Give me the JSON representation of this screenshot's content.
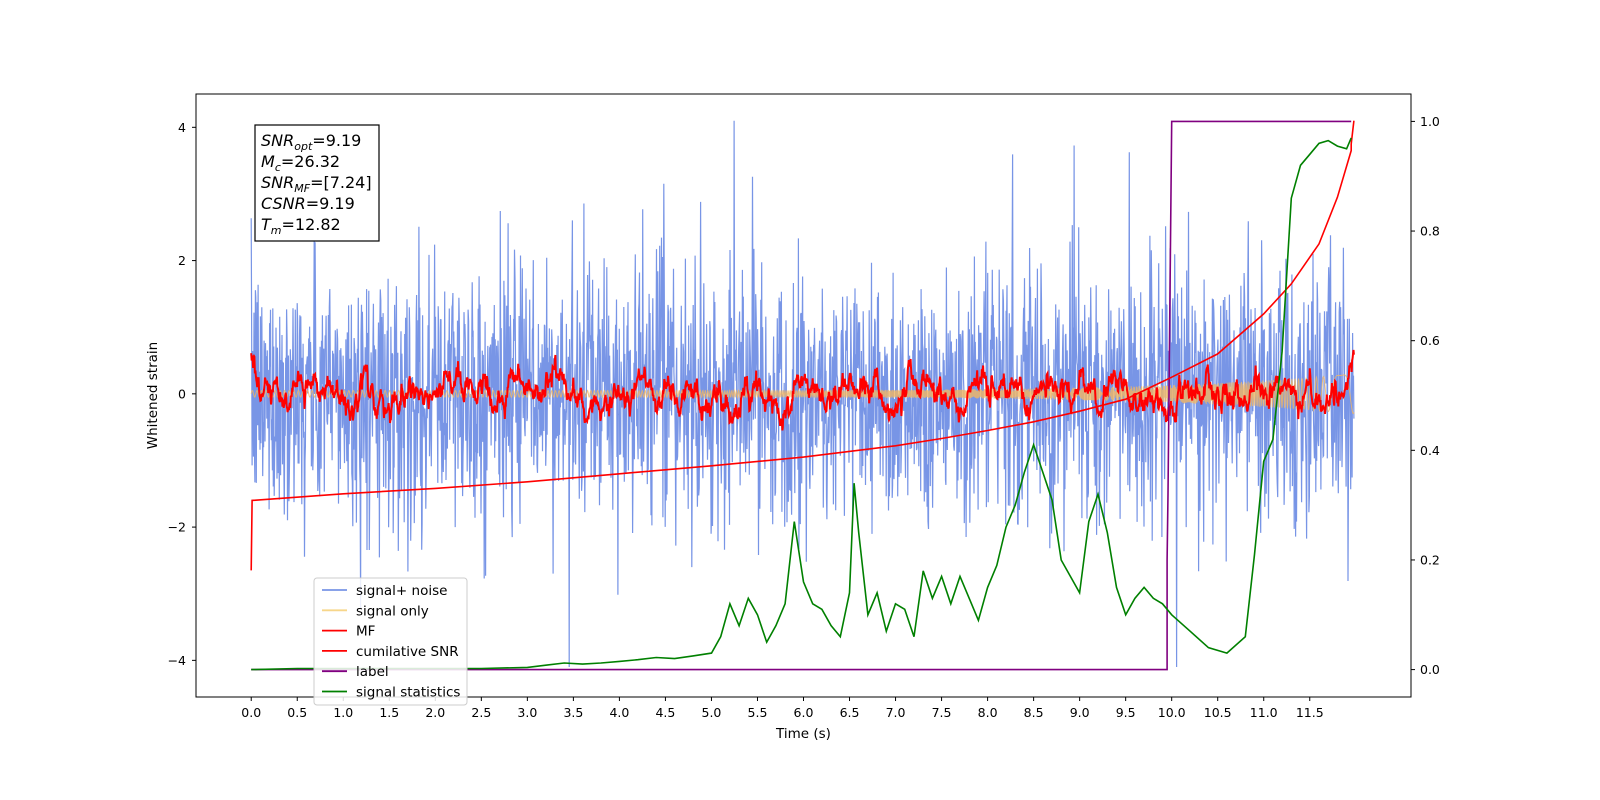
{
  "chart_data": {
    "type": "line",
    "xlabel": "Time (s)",
    "ylabel": "Whitened strain",
    "xlim": [
      -0.6,
      12.6
    ],
    "ylim": [
      -4.55,
      4.5
    ],
    "y2lim": [
      -0.05,
      1.05
    ],
    "x_ticks": [
      "0.0",
      "0.5",
      "1.0",
      "1.5",
      "2.0",
      "2.5",
      "3.0",
      "3.5",
      "4.0",
      "4.5",
      "5.0",
      "5.5",
      "6.0",
      "6.5",
      "7.0",
      "7.5",
      "8.0",
      "8.5",
      "9.0",
      "9.5",
      "10.0",
      "10.5",
      "11.0",
      "11.5"
    ],
    "y_ticks": [
      "−4",
      "−2",
      "0",
      "2",
      "4"
    ],
    "y2_ticks": [
      "0.0",
      "0.2",
      "0.4",
      "0.6",
      "0.8",
      "1.0"
    ],
    "info_box": [
      {
        "sym": "SNR",
        "sub": "opt",
        "val": "=9.19"
      },
      {
        "sym": "M",
        "sub": "c",
        "val": "=26.32"
      },
      {
        "sym": "SNR",
        "sub": "MF",
        "val": "=[7.24]"
      },
      {
        "sym": "CSNR",
        "sub": "",
        "val": "=9.19"
      },
      {
        "sym": "T",
        "sub": "m",
        "val": "=12.82"
      }
    ],
    "legend": [
      {
        "name": "signal+ noise",
        "color": "#7895e6"
      },
      {
        "name": "signal only",
        "color": "#f7d68a"
      },
      {
        "name": "MF",
        "color": "#ff0000"
      },
      {
        "name": "cumilative SNR",
        "color": "#ff0000"
      },
      {
        "name": "label",
        "color": "#800080"
      },
      {
        "name": "signal statistics",
        "color": "#008000"
      }
    ],
    "legend_position": "lower-left",
    "series": [
      {
        "name": "label",
        "axis": "right",
        "color": "#800080",
        "x": [
          0,
          9.95,
          9.95,
          9.96,
          10.0,
          11.95
        ],
        "y": [
          0,
          0,
          0.2,
          0.32,
          1.0,
          1.0
        ]
      },
      {
        "name": "cumilative SNR",
        "axis": "left",
        "color": "#ff0000",
        "x": [
          0,
          0.01,
          1,
          2,
          3,
          4,
          5,
          6,
          7,
          7.5,
          8,
          8.5,
          9,
          9.5,
          10,
          10.5,
          11,
          11.3,
          11.6,
          11.8,
          11.95,
          11.95,
          11.98
        ],
        "y": [
          -2.65,
          -1.6,
          -1.5,
          -1.42,
          -1.32,
          -1.2,
          -1.08,
          -0.95,
          -0.78,
          -0.67,
          -0.55,
          -0.42,
          -0.26,
          -0.08,
          0.25,
          0.6,
          1.2,
          1.65,
          2.25,
          2.95,
          3.65,
          3.75,
          4.1
        ]
      },
      {
        "name": "signal statistics",
        "axis": "right",
        "color": "#008000",
        "x": [
          0,
          0.5,
          1,
          1.5,
          2,
          2.5,
          3,
          3.2,
          3.4,
          3.6,
          3.8,
          4.0,
          4.2,
          4.4,
          4.6,
          4.8,
          5.0,
          5.1,
          5.2,
          5.3,
          5.4,
          5.5,
          5.6,
          5.7,
          5.8,
          5.9,
          6.0,
          6.1,
          6.2,
          6.3,
          6.4,
          6.5,
          6.55,
          6.6,
          6.7,
          6.8,
          6.9,
          7.0,
          7.1,
          7.2,
          7.3,
          7.4,
          7.5,
          7.6,
          7.7,
          7.8,
          7.9,
          8.0,
          8.1,
          8.2,
          8.3,
          8.4,
          8.5,
          8.6,
          8.7,
          8.8,
          8.9,
          9.0,
          9.1,
          9.2,
          9.3,
          9.4,
          9.5,
          9.6,
          9.7,
          9.8,
          9.9,
          10.0,
          10.2,
          10.4,
          10.6,
          10.8,
          10.9,
          11.0,
          11.1,
          11.2,
          11.3,
          11.4,
          11.5,
          11.6,
          11.7,
          11.8,
          11.9,
          11.95
        ],
        "y": [
          0,
          0.002,
          0.002,
          0.002,
          0.002,
          0.002,
          0.004,
          0.008,
          0.012,
          0.01,
          0.012,
          0.015,
          0.018,
          0.022,
          0.02,
          0.025,
          0.03,
          0.06,
          0.12,
          0.08,
          0.13,
          0.1,
          0.05,
          0.08,
          0.12,
          0.27,
          0.16,
          0.12,
          0.11,
          0.08,
          0.06,
          0.14,
          0.34,
          0.25,
          0.1,
          0.14,
          0.07,
          0.12,
          0.11,
          0.06,
          0.18,
          0.13,
          0.17,
          0.12,
          0.17,
          0.13,
          0.09,
          0.15,
          0.19,
          0.26,
          0.3,
          0.36,
          0.41,
          0.36,
          0.31,
          0.2,
          0.17,
          0.14,
          0.27,
          0.32,
          0.25,
          0.15,
          0.1,
          0.13,
          0.15,
          0.13,
          0.12,
          0.1,
          0.07,
          0.04,
          0.03,
          0.06,
          0.21,
          0.38,
          0.42,
          0.58,
          0.86,
          0.92,
          0.94,
          0.96,
          0.965,
          0.955,
          0.95,
          0.97
        ]
      }
    ]
  }
}
